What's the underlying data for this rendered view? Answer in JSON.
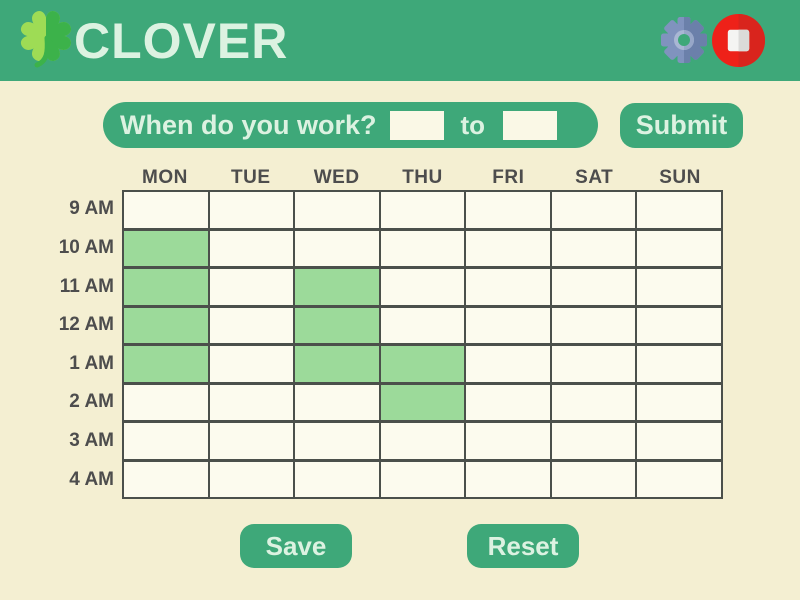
{
  "header": {
    "title": "CLOVER",
    "logo_icon": "clover-icon",
    "settings_icon": "gear-icon",
    "record_icon": "stop-record-icon"
  },
  "question": {
    "label": "When do you work?",
    "from_value": "",
    "to_separator": "to",
    "to_value": "",
    "submit_label": "Submit"
  },
  "grid": {
    "days": [
      "MON",
      "TUE",
      "WED",
      "THU",
      "FRI",
      "SAT",
      "SUN"
    ],
    "hours": [
      "9 AM",
      "10 AM",
      "11 AM",
      "12 AM",
      "1 AM",
      "2 AM",
      "3 AM",
      "4 AM"
    ],
    "selected": [
      {
        "hour": "10 AM",
        "day": "MON"
      },
      {
        "hour": "11 AM",
        "day": "MON"
      },
      {
        "hour": "11 AM",
        "day": "WED"
      },
      {
        "hour": "12 AM",
        "day": "MON"
      },
      {
        "hour": "12 AM",
        "day": "WED"
      },
      {
        "hour": "1 AM",
        "day": "MON"
      },
      {
        "hour": "1 AM",
        "day": "WED"
      },
      {
        "hour": "1 AM",
        "day": "THU"
      },
      {
        "hour": "2 AM",
        "day": "THU"
      }
    ]
  },
  "actions": {
    "save_label": "Save",
    "reset_label": "Reset"
  },
  "colors": {
    "header_green": "#3EA879",
    "page_bg": "#F4EFD2",
    "mint_text": "#DCF2E1",
    "cell_bg": "#FCFBEE",
    "cell_selected": "#9CDA9A",
    "grid_border": "#4B504B",
    "label_gray": "#4D4D4D",
    "input_bg": "#FAF8E6",
    "clover_light": "#9EDC55",
    "clover_dark": "#3CB24A",
    "gear_light": "#8093BE",
    "gear_dark": "#6B80AA",
    "gear_ring_light": "#A9B7D4",
    "gear_ring_dark": "#97A7C8",
    "record_red_light": "#EE2119",
    "record_red_dark": "#D9241D",
    "stop_square_light": "#F4F4F2",
    "stop_square_dark": "#DBDBD9"
  }
}
